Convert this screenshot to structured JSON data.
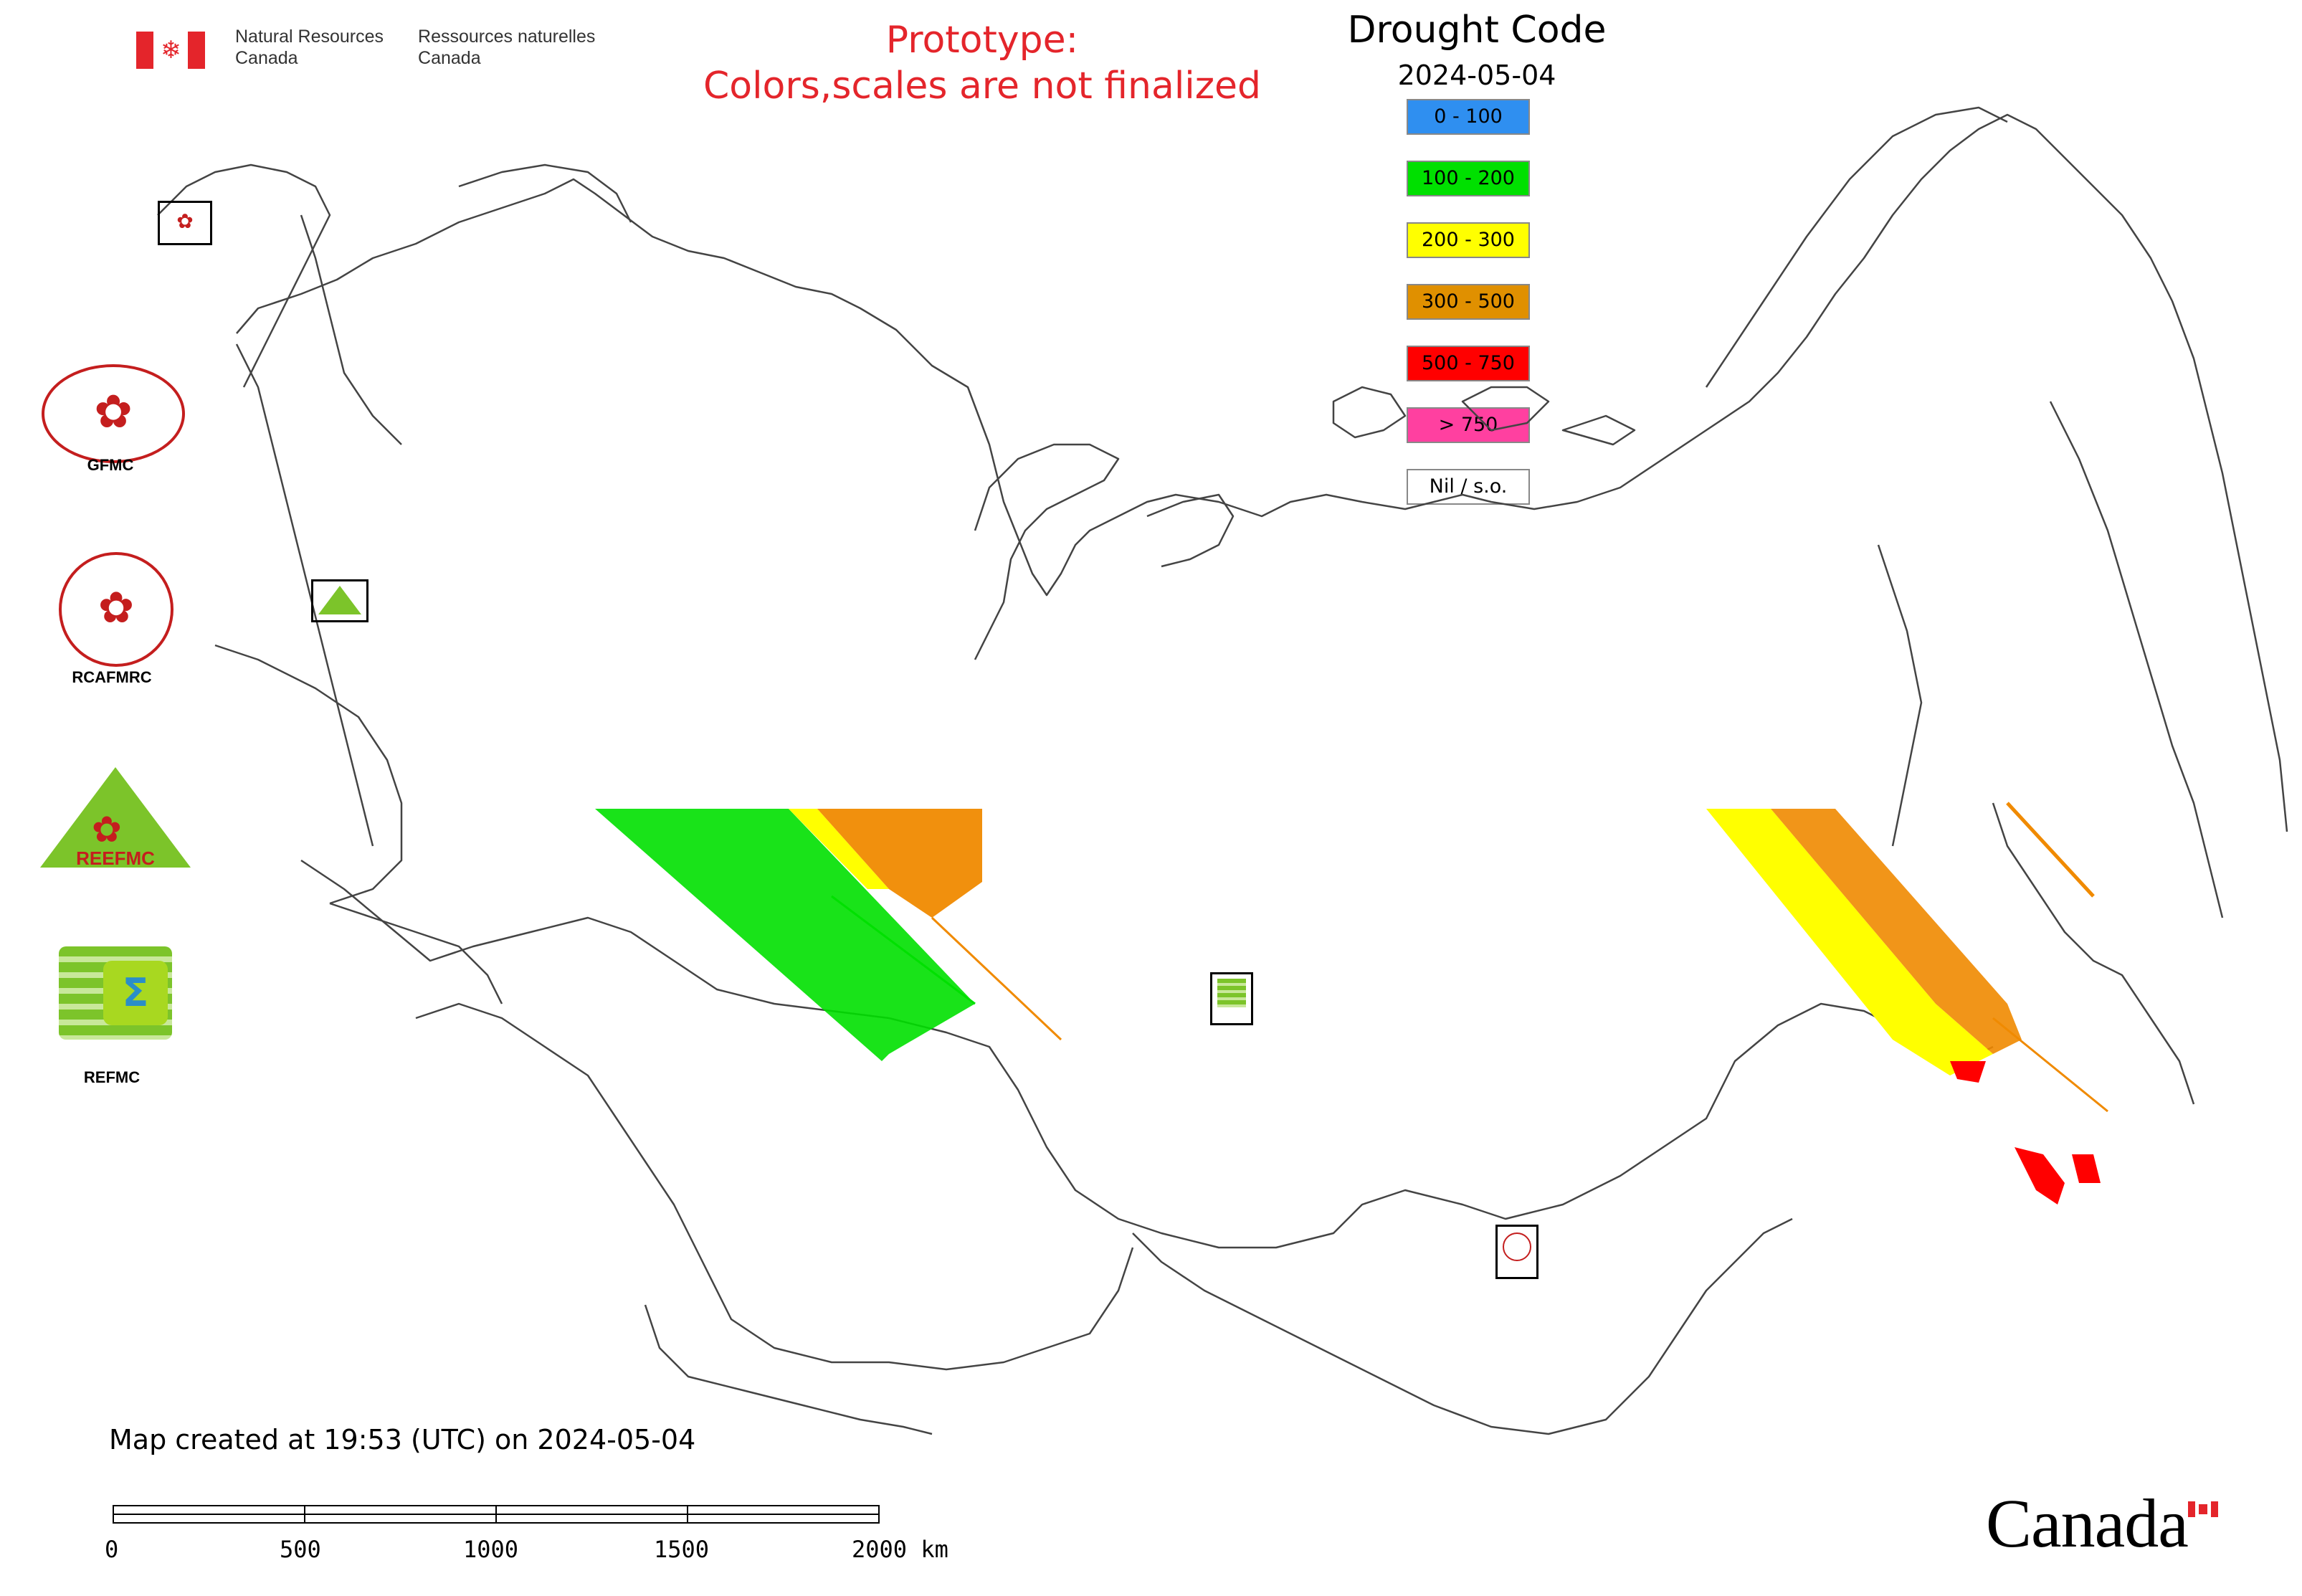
{
  "header": {
    "gov_en": "Natural Resources Canada",
    "gov_en_line1": "Natural Resources",
    "gov_en_line2": "Canada",
    "gov_fr_line1": "Ressources naturelles",
    "gov_fr_line2": "Canada"
  },
  "notice": {
    "line1": "Prototype:",
    "line2": "Colors,scales are not finalized",
    "color": "#e4252b"
  },
  "legend": {
    "title": "Drought Code",
    "date": "2024-05-04",
    "items": [
      {
        "label": "0 - 100",
        "color": "#2f8ff0"
      },
      {
        "label": "100 - 200",
        "color": "#00e000"
      },
      {
        "label": "200 - 300",
        "color": "#ffff00"
      },
      {
        "label": "300 - 500",
        "color": "#e09000"
      },
      {
        "label": "500 - 750",
        "color": "#ff0000"
      },
      {
        "label": "> 750",
        "color": "#ff40a0"
      },
      {
        "label": "Nil / s.o.",
        "color": "#ffffff"
      }
    ]
  },
  "logos": [
    {
      "label": "GFMC",
      "icon": "gfmc-logo-icon"
    },
    {
      "label": "RCAFMRC",
      "icon": "rcafmrc-logo-icon"
    },
    {
      "label": "REEFMC",
      "icon": "reefmc-logo-icon"
    },
    {
      "label": "REFMC",
      "icon": "refmc-logo-icon"
    }
  ],
  "footer": {
    "created": "Map created at 19:53 (UTC) on 2024-05-04",
    "scale_labels": [
      "0",
      "500",
      "1000",
      "1500",
      "2000 km"
    ],
    "wordmark": "Canada"
  }
}
